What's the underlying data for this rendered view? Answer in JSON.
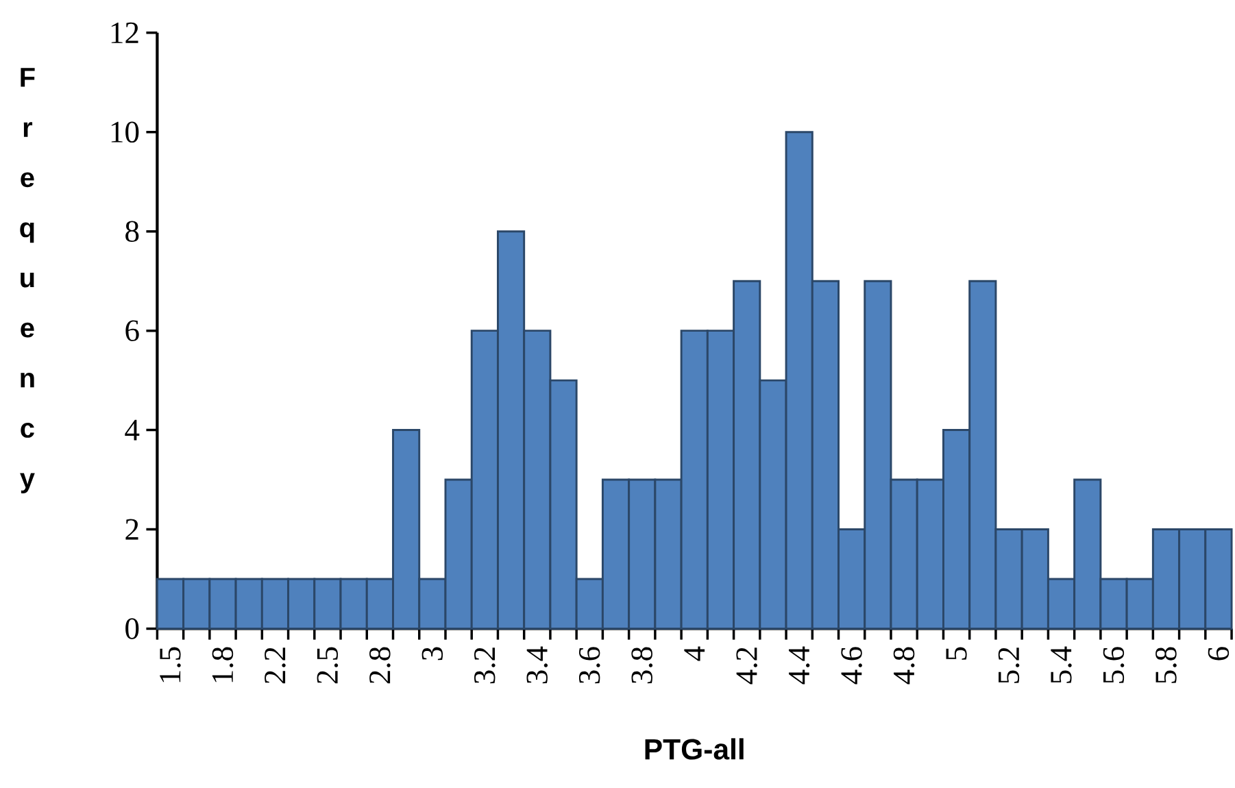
{
  "chart_data": {
    "type": "bar",
    "xlabel": "PTG-all",
    "ylabel": "Frequency",
    "categories": [
      "1.5",
      null,
      "1.8",
      null,
      "2.2",
      null,
      "2.5",
      null,
      "2.8",
      null,
      "3",
      null,
      "3.2",
      null,
      "3.4",
      null,
      "3.6",
      null,
      "3.8",
      null,
      "4",
      null,
      "4.2",
      null,
      "4.4",
      null,
      "4.6",
      null,
      "4.8",
      null,
      "5",
      null,
      "5.2",
      null,
      "5.4",
      null,
      "5.6",
      null,
      "5.8",
      null,
      "6"
    ],
    "values": [
      1,
      1,
      1,
      1,
      1,
      1,
      1,
      1,
      1,
      4,
      1,
      3,
      6,
      8,
      6,
      5,
      1,
      3,
      3,
      3,
      6,
      6,
      7,
      5,
      10,
      7,
      2,
      7,
      3,
      3,
      4,
      7,
      2,
      2,
      1,
      3,
      1,
      1,
      2,
      2,
      2
    ],
    "color": "#4f81bd",
    "ylim": [
      0,
      12
    ],
    "yticks": [
      0,
      2,
      4,
      6,
      8,
      10,
      12
    ]
  }
}
